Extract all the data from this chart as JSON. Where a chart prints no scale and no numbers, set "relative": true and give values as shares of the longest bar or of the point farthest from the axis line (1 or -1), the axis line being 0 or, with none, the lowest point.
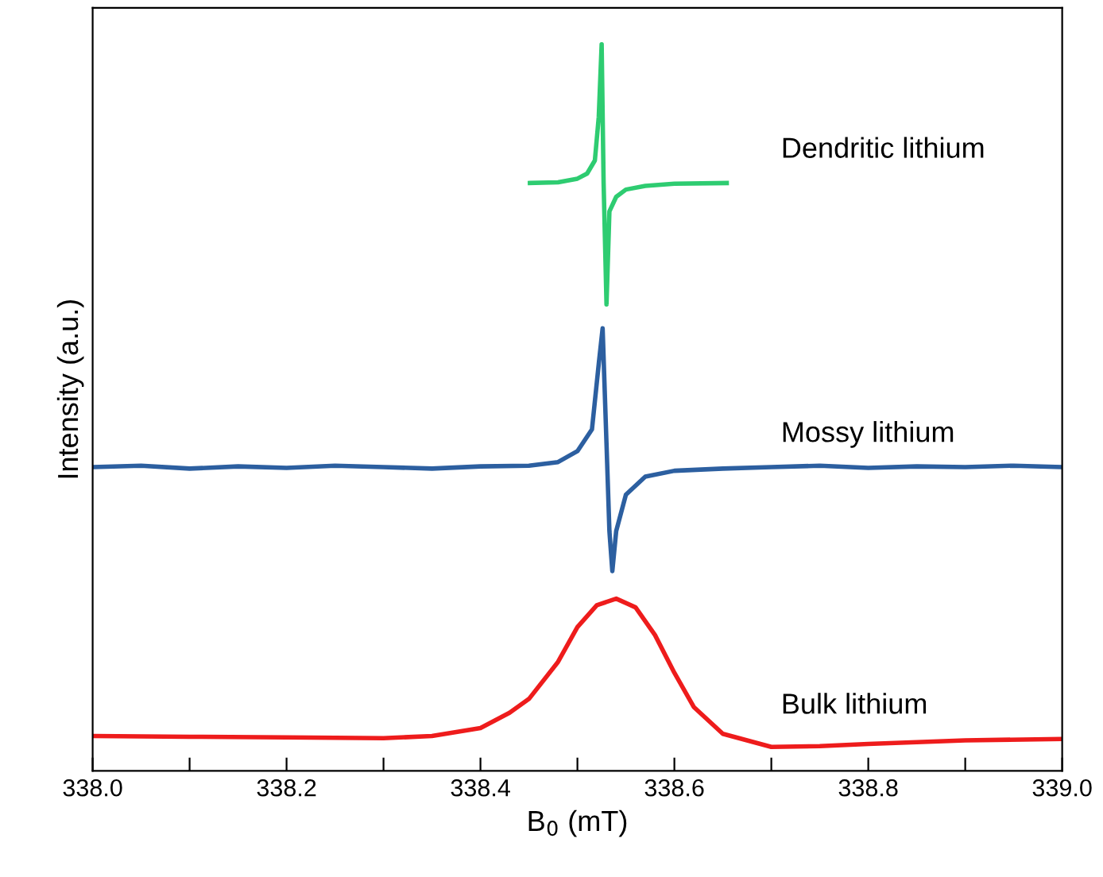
{
  "chart_data": {
    "type": "line",
    "relative": true,
    "xlabel": "B$_{0}$ (mT)",
    "ylabel": "Intensity (a.u.)",
    "xlim": [
      338.0,
      339.0
    ],
    "xticks": [
      {
        "value": 338.0,
        "label": "338.0"
      },
      {
        "value": 338.1,
        "label": null
      },
      338.2,
      {
        "value": 338.3,
        "label": null
      },
      338.4,
      {
        "value": 338.5,
        "label": null
      },
      338.6,
      {
        "value": 338.7,
        "label": null
      },
      338.8,
      {
        "value": 338.9,
        "label": null
      },
      {
        "value": 339.0,
        "label": "339.0"
      }
    ],
    "grid": false,
    "legend": false,
    "marker": "none",
    "line_style": "solid",
    "series": [
      {
        "name": "Dendritic lithium",
        "color": "#2ecc71",
        "x": [
          338.451,
          338.48,
          338.5,
          338.51,
          338.518,
          338.522,
          338.525,
          338.527,
          338.53,
          338.533,
          338.54,
          338.55,
          338.57,
          338.6,
          338.654
        ],
        "values": [
          0.809,
          0.81,
          0.815,
          0.822,
          0.84,
          0.9,
          1.0,
          0.81,
          0.642,
          0.77,
          0.79,
          0.8,
          0.805,
          0.808,
          0.809
        ]
      },
      {
        "name": "Mossy lithium",
        "color": "#2c5fa0",
        "x": [
          338.0,
          338.05,
          338.1,
          338.15,
          338.2,
          338.25,
          338.3,
          338.35,
          338.4,
          338.45,
          338.48,
          338.5,
          338.515,
          338.522,
          338.526,
          338.53,
          338.533,
          338.536,
          338.54,
          338.55,
          338.57,
          338.6,
          338.65,
          338.7,
          338.75,
          338.8,
          338.85,
          338.9,
          338.95,
          339.0
        ],
        "values": [
          0.418,
          0.42,
          0.416,
          0.419,
          0.417,
          0.42,
          0.418,
          0.416,
          0.419,
          0.42,
          0.425,
          0.44,
          0.47,
          0.56,
          0.609,
          0.45,
          0.33,
          0.275,
          0.33,
          0.38,
          0.405,
          0.413,
          0.416,
          0.418,
          0.42,
          0.417,
          0.419,
          0.418,
          0.42,
          0.418
        ]
      },
      {
        "name": "Bulk lithium",
        "color": "#ee1c1c",
        "x": [
          338.0,
          338.1,
          338.2,
          338.3,
          338.35,
          338.4,
          338.43,
          338.45,
          338.48,
          338.5,
          338.52,
          338.54,
          338.56,
          338.58,
          338.6,
          338.62,
          338.65,
          338.7,
          338.75,
          338.8,
          338.9,
          339.0
        ],
        "values": [
          0.048,
          0.047,
          0.046,
          0.045,
          0.048,
          0.059,
          0.08,
          0.099,
          0.15,
          0.198,
          0.228,
          0.237,
          0.225,
          0.187,
          0.135,
          0.088,
          0.051,
          0.033,
          0.034,
          0.037,
          0.042,
          0.044
        ]
      }
    ]
  }
}
